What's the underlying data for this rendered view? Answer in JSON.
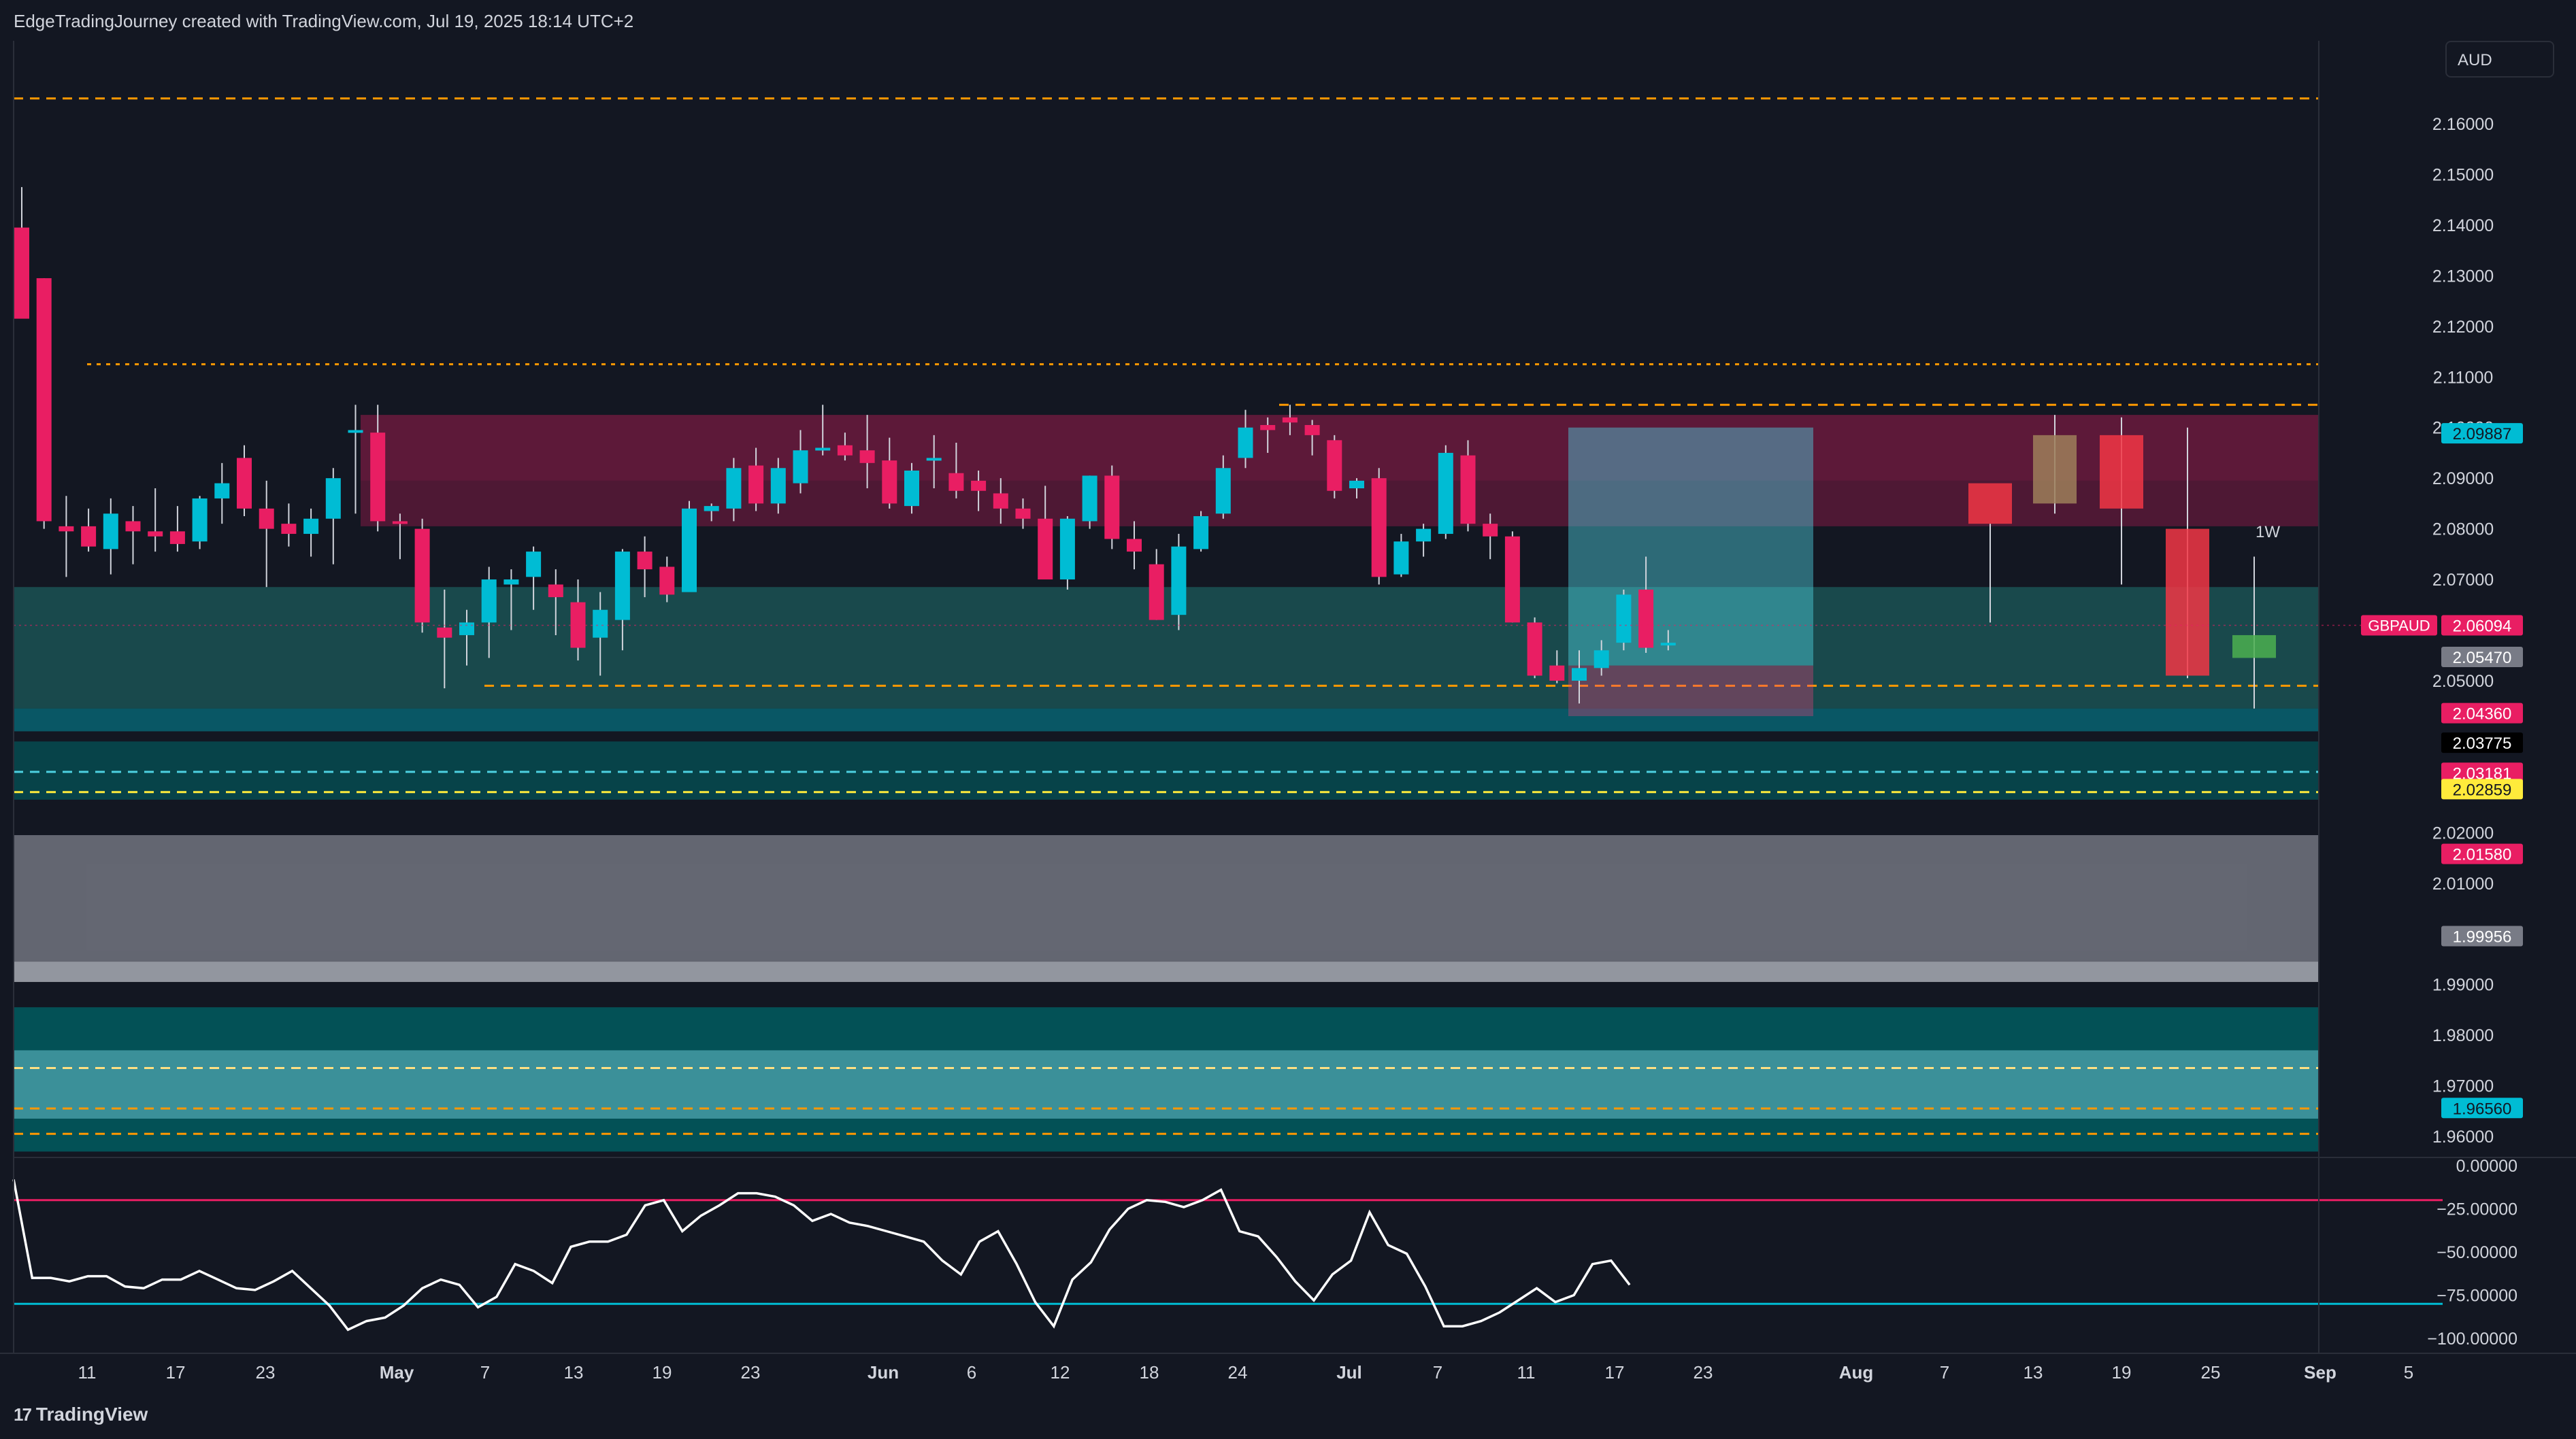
{
  "header": {
    "attribution": "EdgeTradingJourney created with TradingView.com, Jul 19, 2025 18:14 UTC+2"
  },
  "currency_button": "AUD",
  "footer": {
    "brand": "TradingView",
    "logo_glyph": "17"
  },
  "colors": {
    "background": "#131722",
    "bull": "#00bcd4",
    "bear": "#e91e63",
    "level_orange": "#ff9800",
    "rsi_line": "#ffffff",
    "rsi_upper": "#e91e63",
    "rsi_lower": "#00bcd4"
  },
  "price_axis": {
    "ticks": [
      "2.16000",
      "2.15000",
      "2.14000",
      "2.13000",
      "2.12000",
      "2.11000",
      "2.10000",
      "2.09000",
      "2.08000",
      "2.07000",
      "2.05000",
      "2.02000",
      "2.01000",
      "1.99000",
      "1.98000",
      "1.97000",
      "1.96000"
    ],
    "labels": [
      {
        "text": "2.09887",
        "value": 2.09887,
        "bg": "#00bcd4",
        "fg": "#131722"
      },
      {
        "text": "2.06094",
        "value": 2.06094,
        "bg": "#e91e63",
        "fg": "#ffffff"
      },
      {
        "text": "2.05470",
        "value": 2.0547,
        "bg": "#787b86",
        "fg": "#ffffff"
      },
      {
        "text": "2.04360",
        "value": 2.0436,
        "bg": "#e91e63",
        "fg": "#ffffff"
      },
      {
        "text": "2.03775",
        "value": 2.03775,
        "bg": "#000000",
        "fg": "#ffffff"
      },
      {
        "text": "2.03181",
        "value": 2.03181,
        "bg": "#e91e63",
        "fg": "#ffffff"
      },
      {
        "text": "2.02859",
        "value": 2.02859,
        "bg": "#ffeb3b",
        "fg": "#131722"
      },
      {
        "text": "2.01580",
        "value": 2.0158,
        "bg": "#e91e63",
        "fg": "#ffffff"
      },
      {
        "text": "1.99956",
        "value": 1.99956,
        "bg": "#787b86",
        "fg": "#ffffff"
      },
      {
        "text": "1.96560",
        "value": 1.9656,
        "bg": "#00bcd4",
        "fg": "#131722"
      }
    ],
    "symbol_tag": "GBPAUD"
  },
  "rsi_axis": {
    "ticks": [
      "0.00000",
      "−25.00000",
      "−50.00000",
      "−75.00000",
      "−100.00000"
    ]
  },
  "timeframe_label": "1W",
  "chart_data": {
    "type": "candlestick",
    "symbol": "GBPAUD",
    "title": "",
    "x_axis_labels": [
      "11",
      "17",
      "23",
      "May",
      "7",
      "13",
      "19",
      "23",
      "Jun",
      "6",
      "12",
      "18",
      "24",
      "Jul",
      "7",
      "11",
      "17",
      "23",
      "Aug",
      "7",
      "13",
      "19",
      "25",
      "Sep",
      "5"
    ],
    "ylim": [
      1.957,
      2.172
    ],
    "daily_candles": [
      [
        2.1395,
        2.1475,
        2.1235,
        2.1215
      ],
      [
        2.1295,
        2.1295,
        2.08,
        2.0815
      ],
      [
        2.0805,
        2.0865,
        2.0705,
        2.0795
      ],
      [
        2.0805,
        2.084,
        2.0755,
        2.0765
      ],
      [
        2.076,
        2.086,
        2.071,
        2.083
      ],
      [
        2.0815,
        2.0845,
        2.073,
        2.0795
      ],
      [
        2.0795,
        2.088,
        2.0755,
        2.0785
      ],
      [
        2.0795,
        2.0845,
        2.0755,
        2.077
      ],
      [
        2.0775,
        2.0865,
        2.076,
        2.086
      ],
      [
        2.086,
        2.093,
        2.081,
        2.089
      ],
      [
        2.094,
        2.0965,
        2.0825,
        2.084
      ],
      [
        2.084,
        2.0895,
        2.0685,
        2.08
      ],
      [
        2.081,
        2.085,
        2.0765,
        2.079
      ],
      [
        2.079,
        2.084,
        2.0745,
        2.082
      ],
      [
        2.082,
        2.092,
        2.073,
        2.09
      ],
      [
        2.0995,
        2.1045,
        2.083,
        2.0995
      ],
      [
        2.099,
        2.1045,
        2.0795,
        2.0815
      ],
      [
        2.0815,
        2.083,
        2.074,
        2.081
      ],
      [
        2.08,
        2.082,
        2.0595,
        2.0615
      ],
      [
        2.0605,
        2.068,
        2.0485,
        2.0585
      ],
      [
        2.059,
        2.064,
        2.053,
        2.0615
      ],
      [
        2.0615,
        2.0725,
        2.0545,
        2.07
      ],
      [
        2.069,
        2.072,
        2.06,
        2.07
      ],
      [
        2.0705,
        2.0765,
        2.064,
        2.0755
      ],
      [
        2.069,
        2.072,
        2.059,
        2.0665
      ],
      [
        2.0655,
        2.07,
        2.054,
        2.0565
      ],
      [
        2.0585,
        2.0675,
        2.051,
        2.064
      ],
      [
        2.062,
        2.076,
        2.056,
        2.0755
      ],
      [
        2.0755,
        2.0785,
        2.0665,
        2.072
      ],
      [
        2.0725,
        2.0745,
        2.0655,
        2.067
      ],
      [
        2.0675,
        2.0855,
        2.068,
        2.084
      ],
      [
        2.0835,
        2.085,
        2.0815,
        2.0845
      ],
      [
        2.084,
        2.094,
        2.0815,
        2.092
      ],
      [
        2.0925,
        2.096,
        2.0835,
        2.085
      ],
      [
        2.085,
        2.094,
        2.083,
        2.092
      ],
      [
        2.089,
        2.0995,
        2.087,
        2.0955
      ],
      [
        2.096,
        2.1045,
        2.0945,
        2.096
      ],
      [
        2.0965,
        2.099,
        2.0935,
        2.0945
      ],
      [
        2.0955,
        2.1025,
        2.088,
        2.093
      ],
      [
        2.0935,
        2.098,
        2.084,
        2.085
      ],
      [
        2.0845,
        2.093,
        2.083,
        2.0915
      ],
      [
        2.094,
        2.0985,
        2.088,
        2.094
      ],
      [
        2.091,
        2.097,
        2.086,
        2.0875
      ],
      [
        2.0895,
        2.0915,
        2.0835,
        2.0875
      ],
      [
        2.087,
        2.09,
        2.081,
        2.084
      ],
      [
        2.084,
        2.086,
        2.08,
        2.082
      ],
      [
        2.082,
        2.0885,
        2.073,
        2.07
      ],
      [
        2.07,
        2.0825,
        2.068,
        2.082
      ],
      [
        2.0815,
        2.0905,
        2.08,
        2.0905
      ],
      [
        2.0905,
        2.0925,
        2.076,
        2.078
      ],
      [
        2.078,
        2.0815,
        2.072,
        2.0755
      ],
      [
        2.073,
        2.076,
        2.062,
        2.062
      ],
      [
        2.063,
        2.079,
        2.06,
        2.0765
      ],
      [
        2.076,
        2.0835,
        2.0755,
        2.0825
      ],
      [
        2.083,
        2.0945,
        2.082,
        2.092
      ],
      [
        2.094,
        2.1035,
        2.092,
        2.1
      ],
      [
        2.1005,
        2.102,
        2.095,
        2.0995
      ],
      [
        2.102,
        2.1045,
        2.0985,
        2.101
      ],
      [
        2.1005,
        2.1015,
        2.0945,
        2.0985
      ],
      [
        2.0975,
        2.0985,
        2.086,
        2.0875
      ],
      [
        2.088,
        2.09,
        2.086,
        2.0895
      ],
      [
        2.09,
        2.092,
        2.069,
        2.0705
      ],
      [
        2.071,
        2.079,
        2.0705,
        2.0775
      ],
      [
        2.0775,
        2.081,
        2.0745,
        2.08
      ],
      [
        2.079,
        2.0965,
        2.078,
        2.095
      ],
      [
        2.0945,
        2.0975,
        2.0795,
        2.081
      ],
      [
        2.081,
        2.083,
        2.074,
        2.0785
      ],
      [
        2.0785,
        2.0795,
        2.0615,
        2.0615
      ],
      [
        2.0615,
        2.0625,
        2.0505,
        2.051
      ],
      [
        2.053,
        2.056,
        2.0495,
        2.05
      ],
      [
        2.05,
        2.056,
        2.0455,
        2.0525
      ],
      [
        2.0525,
        2.058,
        2.051,
        2.056
      ],
      [
        2.0575,
        2.068,
        2.056,
        2.067
      ],
      [
        2.068,
        2.0745,
        2.0555,
        2.0565
      ],
      [
        2.057,
        2.06,
        2.056,
        2.0575
      ]
    ],
    "weekly_candles": [
      [
        2.081,
        2.081,
        2.0615,
        2.089
      ],
      [
        2.085,
        2.1025,
        2.083,
        2.0985
      ],
      [
        2.0985,
        2.102,
        2.069,
        2.084
      ],
      [
        2.08,
        2.1,
        2.0505,
        2.051
      ],
      [
        2.0545,
        2.0745,
        2.0445,
        2.059
      ]
    ],
    "zones": [
      {
        "name": "supply-upper",
        "from": 2.0895,
        "to": 2.1025,
        "color": "#e91e63",
        "opacity": 0.35
      },
      {
        "name": "supply-lower",
        "from": 2.0805,
        "to": 2.0895,
        "color": "#e91e63",
        "opacity": 0.28
      },
      {
        "name": "demand-teal",
        "from": 2.0445,
        "to": 2.0685,
        "color": "#26a69a",
        "opacity": 0.35
      },
      {
        "name": "demand-teal-dark",
        "from": 2.04,
        "to": 2.0445,
        "color": "#0097a7",
        "opacity": 0.5
      },
      {
        "name": "demand-lower-teal",
        "from": 2.0265,
        "to": 2.038,
        "color": "#006064",
        "opacity": 0.6
      },
      {
        "name": "grey-zone",
        "from": 1.9905,
        "to": 2.0195,
        "color": "#787b86",
        "opacity": 0.8
      },
      {
        "name": "grey-zone-light",
        "from": 1.9905,
        "to": 1.9945,
        "color": "#b2b5be",
        "opacity": 0.6
      },
      {
        "name": "deep-teal-zone",
        "from": 1.957,
        "to": 1.9855,
        "color": "#006064",
        "opacity": 0.8
      },
      {
        "name": "light-teal-zone",
        "from": 1.9635,
        "to": 1.977,
        "color": "#80deea",
        "opacity": 0.45
      }
    ],
    "levels": [
      {
        "name": "top-dashed",
        "value": 2.165,
        "color": "#ff9800"
      },
      {
        "name": "upper-dotted",
        "value": 2.1125,
        "color": "#ff9800"
      },
      {
        "name": "range-high",
        "value": 2.1045,
        "color": "#ff9800"
      },
      {
        "name": "range-low",
        "value": 2.049,
        "color": "#ff9800"
      },
      {
        "name": "mid-dashed-1",
        "value": 2.032,
        "color": "#4dd0e1"
      },
      {
        "name": "mid-dashed-2",
        "value": 2.028,
        "color": "#ffeb3b"
      },
      {
        "name": "low-dashed-1",
        "value": 1.9735,
        "color": "#ffe082"
      },
      {
        "name": "low-dashed-2",
        "value": 1.9655,
        "color": "#ff9800"
      },
      {
        "name": "low-dashed-3",
        "value": 1.9605,
        "color": "#ff9800"
      }
    ],
    "position_box": {
      "entry": 2.053,
      "target": 2.1,
      "stop": 2.043
    },
    "rsi": {
      "ylim": [
        -100,
        0
      ],
      "upper_band": -20,
      "lower_band": -80,
      "values": [
        -8,
        -65,
        -65,
        -67,
        -64,
        -64,
        -70,
        -71,
        -66,
        -66,
        -61,
        -66,
        -71,
        -72,
        -67,
        -61,
        -71,
        -81,
        -95,
        -90,
        -88,
        -81,
        -71,
        -66,
        -69,
        -82,
        -76,
        -57,
        -61,
        -68,
        -47,
        -44,
        -44,
        -40,
        -23,
        -20,
        -38,
        -29,
        -23,
        -16,
        -16,
        -18,
        -23,
        -32,
        -28,
        -33,
        -35,
        -38,
        -41,
        -44,
        -55,
        -63,
        -44,
        -38,
        -57,
        -79,
        -93,
        -66,
        -56,
        -37,
        -25,
        -20,
        -21,
        -24,
        -20,
        -14,
        -38,
        -41,
        -53,
        -67,
        -78,
        -63,
        -55,
        -27,
        -46,
        -51,
        -70,
        -93,
        -93,
        -90,
        -85,
        -78,
        -71,
        -79,
        -75,
        -57,
        -55,
        -69
      ]
    }
  }
}
